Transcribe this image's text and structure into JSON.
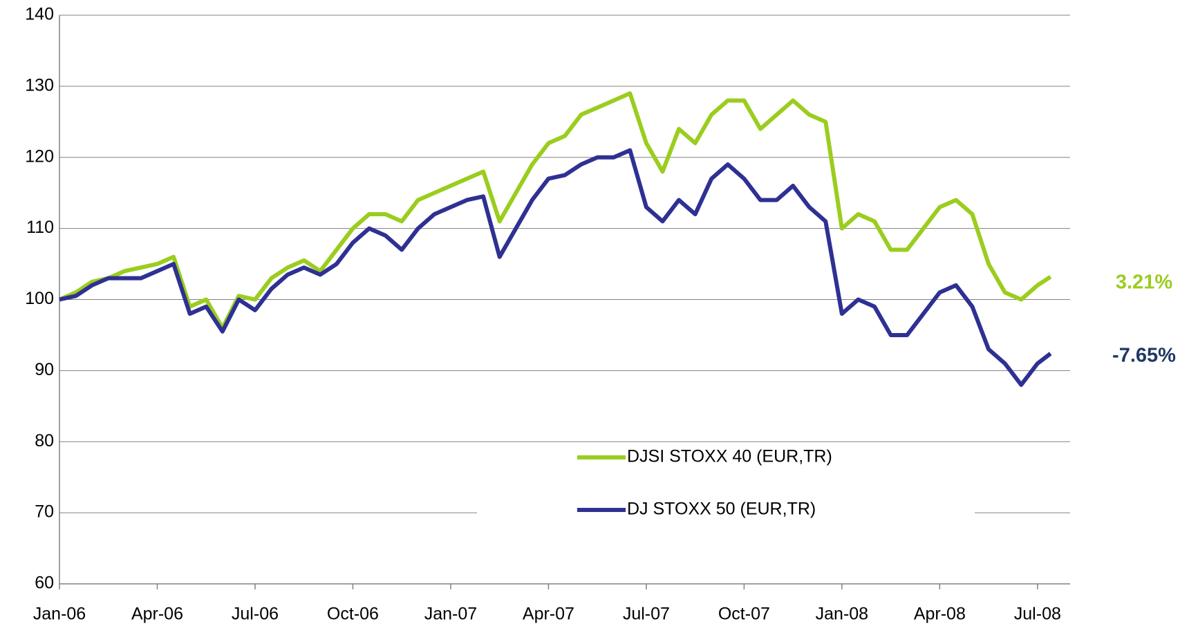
{
  "chart_data": {
    "type": "line",
    "x": [
      0,
      0.5,
      1,
      1.5,
      2,
      2.5,
      3,
      3.5,
      4,
      4.5,
      5,
      5.5,
      6,
      6.5,
      7,
      7.5,
      8,
      8.5,
      9,
      9.5,
      10,
      10.5,
      11,
      11.5,
      12,
      12.5,
      13,
      13.5,
      14,
      14.5,
      15,
      15.5,
      16,
      16.5,
      17,
      17.5,
      18,
      18.5,
      19,
      19.5,
      20,
      20.5,
      21,
      21.5,
      22,
      22.5,
      23,
      23.5,
      24,
      24.5,
      25,
      25.5,
      26,
      26.5,
      27,
      27.5,
      28,
      28.5,
      29,
      29.5,
      30,
      30.4
    ],
    "series": [
      {
        "name": "DJSI STOXX 40 (EUR,TR)",
        "color": "#9acd1e",
        "values": [
          100,
          101,
          102.5,
          103,
          104,
          104.5,
          105,
          106,
          99,
          100,
          96,
          100.5,
          100,
          103,
          104.5,
          105.5,
          104,
          107,
          110,
          112,
          112,
          111,
          114,
          115,
          116,
          117,
          118,
          111,
          115,
          119,
          122,
          123,
          126,
          127,
          128,
          129,
          122,
          118,
          124,
          122,
          126,
          128,
          128,
          124,
          126,
          128,
          126,
          125,
          110,
          112,
          111,
          107,
          107,
          110,
          113,
          114,
          112,
          105,
          101,
          100,
          102,
          103.2
        ]
      },
      {
        "name": "DJ STOXX 50 (EUR,TR)",
        "color": "#2e3192",
        "values": [
          100,
          100.5,
          102,
          103,
          103,
          103,
          104,
          105,
          98,
          99,
          95.5,
          100,
          98.5,
          101.5,
          103.5,
          104.5,
          103.5,
          105,
          108,
          110,
          109,
          107,
          110,
          112,
          113,
          114,
          114.5,
          106,
          110,
          114,
          117,
          117.5,
          119,
          120,
          120,
          121,
          113,
          111,
          114,
          112,
          117,
          119,
          117,
          114,
          114,
          116,
          113,
          111,
          98,
          100,
          99,
          95,
          95,
          98,
          101,
          102,
          99,
          93,
          91,
          88,
          91,
          92.4
        ]
      }
    ],
    "xlim": [
      0,
      31
    ],
    "xticks": [
      {
        "value": 0,
        "label": "Jan-06"
      },
      {
        "value": 3,
        "label": "Apr-06"
      },
      {
        "value": 6,
        "label": "Jul-06"
      },
      {
        "value": 9,
        "label": "Oct-06"
      },
      {
        "value": 12,
        "label": "Jan-07"
      },
      {
        "value": 15,
        "label": "Apr-07"
      },
      {
        "value": 18,
        "label": "Jul-07"
      },
      {
        "value": 21,
        "label": "Oct-07"
      },
      {
        "value": 24,
        "label": "Jan-08"
      },
      {
        "value": 27,
        "label": "Apr-08"
      },
      {
        "value": 30,
        "label": "Jul-08"
      }
    ],
    "ylim": [
      60,
      140
    ],
    "yticks": [
      60,
      70,
      80,
      90,
      100,
      110,
      120,
      130,
      140
    ],
    "grid": true,
    "legend": "lower center",
    "annotations": [
      {
        "text": "3.21%",
        "color": "#9acd1e"
      },
      {
        "text": "-7.65%",
        "color": "#1f3864"
      }
    ]
  }
}
